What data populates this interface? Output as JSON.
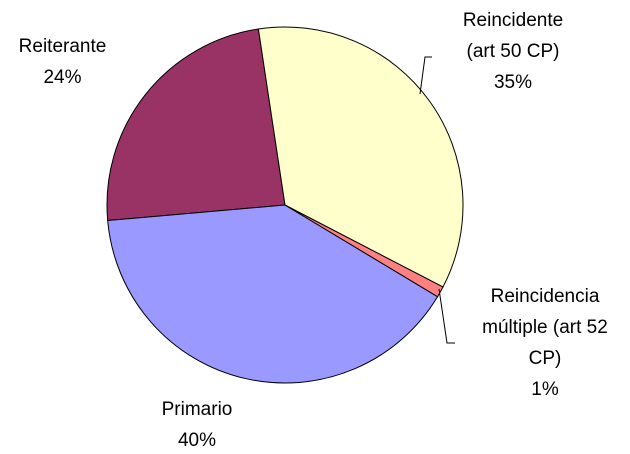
{
  "chart_data": {
    "type": "pie",
    "categories": [
      "Reincidente (art 50 CP)",
      "Reincidencia múltiple (art 52 CP)",
      "Primario",
      "Reiterante"
    ],
    "values": [
      35,
      1,
      40,
      24
    ],
    "value_labels": [
      "35%",
      "1%",
      "40%",
      "24%"
    ],
    "colors": [
      "#ffffcc",
      "#ff8080",
      "#9999ff",
      "#993366"
    ]
  }
}
